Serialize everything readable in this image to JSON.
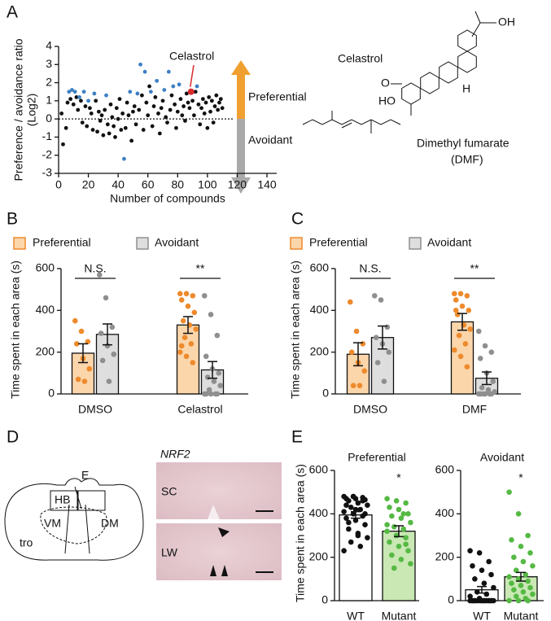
{
  "panel_labels": [
    "A",
    "B",
    "C",
    "D",
    "E"
  ],
  "structures": {
    "celastrol": {
      "name": "Celastrol",
      "atoms": [
        "OH",
        "O",
        "HO",
        "H"
      ]
    },
    "dmf": {
      "name": "Dimethyl fumarate",
      "abbr": "(DMF)"
    }
  },
  "diagram": {
    "labels": [
      "E",
      "HB",
      "VM",
      "DM",
      "tro"
    ]
  },
  "histology": {
    "gene": "NRF2",
    "rows": [
      "SC",
      "LW"
    ]
  },
  "chart_data": [
    {
      "type": "scatter",
      "xlabel": "Number of compounds",
      "ylabel": [
        "Preference / avoidance ratio",
        "(Log2)"
      ],
      "xlim": [
        0,
        140
      ],
      "xticks": [
        0,
        20,
        40,
        60,
        80,
        100,
        120,
        140
      ],
      "ylim": [
        -3,
        4
      ],
      "yticks": [
        -3,
        -2,
        -1,
        0,
        1,
        2,
        3,
        4
      ],
      "hline": 0,
      "arrows": [
        "Preferential",
        "Avoidant"
      ],
      "series": [
        {
          "color": "#111111",
          "x": [
            2,
            3,
            5,
            6,
            8,
            10,
            12,
            13,
            15,
            16,
            18,
            19,
            21,
            22,
            23,
            25,
            26,
            27,
            28,
            29,
            30,
            31,
            33,
            34,
            35,
            36,
            37,
            38,
            39,
            40,
            41,
            42,
            43,
            45,
            46,
            47,
            49,
            50,
            51,
            52,
            54,
            56,
            57,
            59,
            60,
            61,
            63,
            64,
            65,
            67,
            68,
            69,
            70,
            72,
            73,
            75,
            76,
            78,
            79,
            80,
            82,
            83,
            84,
            85,
            86,
            87,
            88,
            90,
            91,
            92,
            94,
            95,
            96,
            97,
            98,
            99,
            100,
            101,
            102,
            103,
            104,
            105,
            106,
            107,
            108,
            109,
            110
          ],
          "values": [
            0.3,
            -1.4,
            -0.5,
            0.9,
            1.1,
            0.8,
            1.2,
            0.5,
            1.0,
            -0.2,
            0.7,
            -0.4,
            0.6,
            0.3,
            -0.6,
            1.0,
            -0.7,
            0.4,
            -0.1,
            0.2,
            -0.9,
            0.5,
            -0.3,
            -0.8,
            0.8,
            0.1,
            -0.4,
            -1.0,
            0.6,
            0.0,
            1.1,
            -0.6,
            0.3,
            -0.5,
            0.9,
            0.2,
            -1.2,
            0.4,
            0.7,
            -0.3,
            0.5,
            1.3,
            -0.6,
            0.9,
            0.2,
            1.8,
            -0.4,
            0.7,
            1.2,
            0.3,
            -0.8,
            0.6,
            1.0,
            0.1,
            -0.2,
            0.5,
            1.3,
            0.8,
            -0.5,
            0.4,
            1.1,
            0.2,
            0.7,
            -0.1,
            1.4,
            0.9,
            0.6,
            1.0,
            0.2,
            1.5,
            0.8,
            -0.3,
            0.6,
            1.1,
            0.3,
            0.9,
            -0.5,
            1.2,
            0.4,
            1.0,
            -0.2,
            0.7,
            1.3,
            0.5,
            0.9,
            1.1,
            0.6
          ]
        },
        {
          "color": "#3d7fc4",
          "x": [
            7,
            9,
            11,
            14,
            17,
            20,
            24,
            32,
            44,
            48,
            53,
            55,
            58,
            62,
            66,
            71,
            74,
            77,
            81,
            93
          ],
          "values": [
            1.5,
            1.6,
            1.5,
            1.2,
            1.5,
            1.0,
            1.4,
            1.3,
            -2.2,
            1.5,
            1.4,
            3.0,
            2.6,
            1.5,
            2.1,
            1.6,
            2.6,
            1.8,
            1.9,
            1.8
          ]
        },
        {
          "color": "#d92b2b",
          "label": "Celastrol",
          "x": [
            89
          ],
          "values": [
            1.5
          ]
        }
      ]
    },
    {
      "type": "bar",
      "ylabel": "Time spent in each area (s)",
      "categories": [
        "DMSO",
        "Celastrol"
      ],
      "ylim": [
        0,
        600
      ],
      "yticks": [
        0,
        200,
        400,
        600
      ],
      "series": [
        {
          "name": "Preferential",
          "fill": "#fbd6ab",
          "color": "#ee8a2c",
          "values": [
            195,
            330
          ],
          "errors": [
            45,
            40
          ],
          "points": [
            [
              350,
              300,
              250,
              240,
              170,
              120,
              70,
              60
            ],
            [
              480,
              480,
              470,
              450,
              420,
              390,
              350,
              330,
              310,
              270,
              240,
              200,
              180,
              150,
              230
            ]
          ]
        },
        {
          "name": "Avoidant",
          "fill": "#dedede",
          "color": "#8f8f8f",
          "values": [
            285,
            115
          ],
          "errors": [
            50,
            40
          ],
          "points": [
            [
              570,
              460,
              320,
              290,
              230,
              190,
              160,
              60
            ],
            [
              470,
              380,
              280,
              180,
              120,
              100,
              80,
              60,
              40,
              20,
              0,
              0,
              0,
              0,
              0
            ]
          ]
        }
      ],
      "annotations": [
        {
          "label": "N.S.",
          "category": 0
        },
        {
          "label": "**",
          "category": 1
        }
      ]
    },
    {
      "type": "bar",
      "ylabel": "Time spent in each area (s)",
      "categories": [
        "DMSO",
        "DMF"
      ],
      "ylim": [
        0,
        600
      ],
      "yticks": [
        0,
        200,
        400,
        600
      ],
      "series": [
        {
          "name": "Preferential",
          "fill": "#fbd6ab",
          "color": "#ee8a2c",
          "values": [
            190,
            345
          ],
          "errors": [
            55,
            40
          ],
          "points": [
            [
              440,
              300,
              240,
              200,
              150,
              110,
              40,
              40
            ],
            [
              480,
              480,
              470,
              450,
              420,
              400,
              380,
              330,
              310,
              280,
              240,
              210,
              180,
              130,
              400
            ]
          ]
        },
        {
          "name": "Avoidant",
          "fill": "#dedede",
          "color": "#8f8f8f",
          "values": [
            270,
            75
          ],
          "errors": [
            55,
            30
          ],
          "points": [
            [
              470,
              450,
              320,
              270,
              240,
              200,
              150,
              60
            ],
            [
              300,
              230,
              200,
              170,
              100,
              60,
              30,
              20,
              10,
              0,
              0,
              0,
              0,
              0,
              0
            ]
          ]
        }
      ],
      "annotations": [
        {
          "label": "N.S.",
          "category": 0
        },
        {
          "label": "**",
          "category": 1
        }
      ]
    },
    {
      "type": "bar",
      "title": "Preferential",
      "ylabel": "Time spent in each area (s)",
      "categories": [
        "WT",
        "Mutant"
      ],
      "ylim": [
        0,
        600
      ],
      "yticks": [
        0,
        200,
        400,
        600
      ],
      "values": [
        395,
        320
      ],
      "errors": [
        15,
        25
      ],
      "fills": [
        "#ffffff",
        "#c9e8b4"
      ],
      "colors": [
        "#111111",
        "#55b944"
      ],
      "points": [
        [
          480,
          480,
          475,
          470,
          470,
          465,
          460,
          450,
          440,
          430,
          420,
          410,
          400,
          390,
          380,
          370,
          350,
          330,
          310,
          290,
          270,
          250,
          230,
          480,
          460,
          440,
          420,
          400,
          360,
          300
        ],
        [
          470,
          460,
          450,
          430,
          420,
          400,
          390,
          380,
          360,
          340,
          330,
          320,
          300,
          290,
          270,
          250,
          230,
          210,
          190,
          170,
          150,
          400,
          350,
          300,
          260
        ]
      ],
      "annotations": [
        {
          "label": "*",
          "category": 1
        }
      ]
    },
    {
      "type": "bar",
      "title": "Avoidant",
      "categories": [
        "WT",
        "Mutant"
      ],
      "ylim": [
        0,
        600
      ],
      "yticks": [
        0,
        200,
        400,
        600
      ],
      "values": [
        50,
        110
      ],
      "errors": [
        15,
        20
      ],
      "fills": [
        "#ffffff",
        "#c9e8b4"
      ],
      "colors": [
        "#111111",
        "#55b944"
      ],
      "points": [
        [
          230,
          220,
          180,
          160,
          140,
          120,
          100,
          80,
          60,
          40,
          30,
          20,
          10,
          0,
          0,
          0,
          0,
          0,
          0,
          0,
          0,
          0,
          0,
          0,
          0,
          0,
          0,
          0,
          0,
          0
        ],
        [
          500,
          400,
          300,
          280,
          250,
          220,
          200,
          180,
          160,
          140,
          120,
          110,
          100,
          90,
          80,
          70,
          60,
          50,
          40,
          30,
          20,
          10,
          0,
          0,
          0
        ]
      ],
      "annotations": [
        {
          "label": "*",
          "category": 1
        }
      ]
    }
  ]
}
